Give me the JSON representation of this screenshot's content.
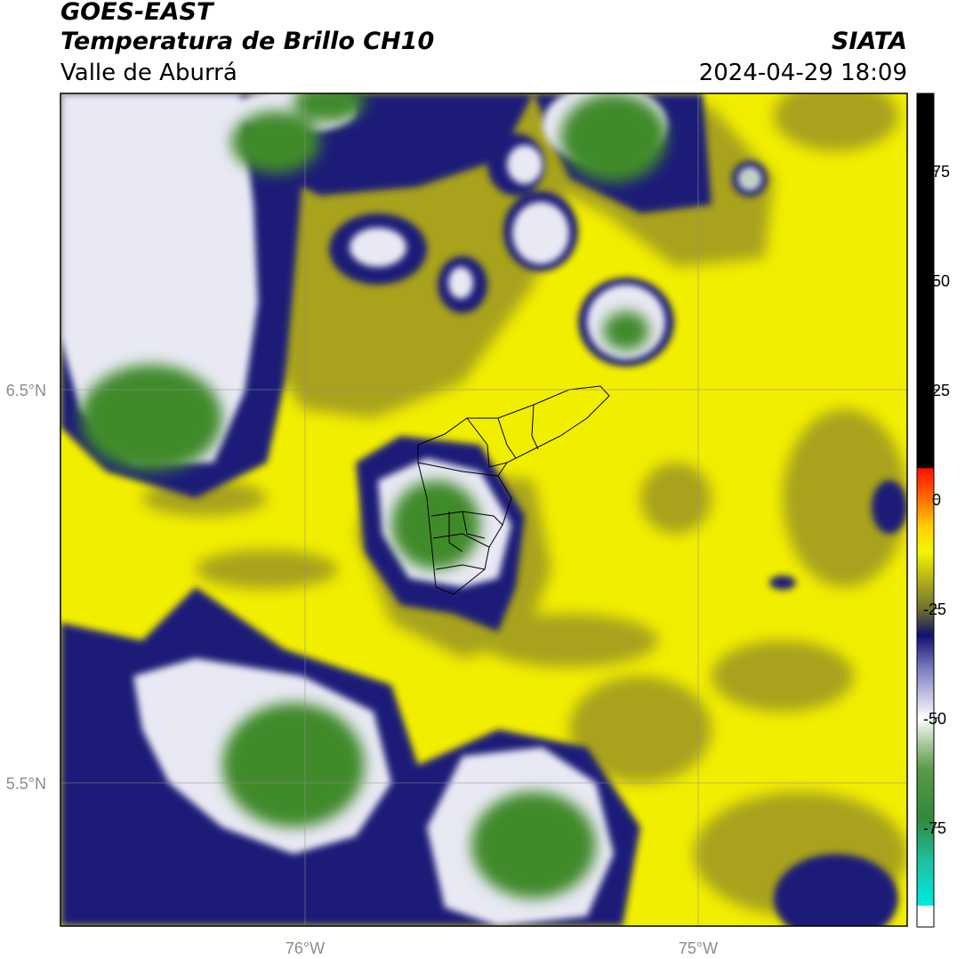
{
  "header": {
    "satellite": "GOES-EAST",
    "product": "Temperatura de Brillo CH10",
    "region": "Valle de Aburrá",
    "organization": "SIATA",
    "timestamp": "2024-04-29 18:09"
  },
  "axes": {
    "lat_ticks": [
      "6.5°N",
      "5.5°N"
    ],
    "lon_ticks": [
      "76°W",
      "75°W"
    ]
  },
  "colorbar": {
    "labels": [
      "75",
      "50",
      "25",
      "0",
      "-25",
      "-50",
      "-75"
    ]
  },
  "colors": {
    "yellow": "#f2f000",
    "olive": "#a8a21a",
    "navy": "#1a1a78",
    "white": "#f4f4f8",
    "green": "#3f8a2c"
  }
}
